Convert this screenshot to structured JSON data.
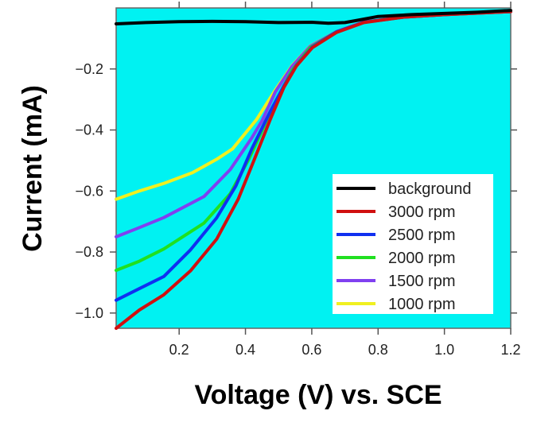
{
  "chart_data": {
    "type": "line",
    "title": "",
    "xlabel": "Voltage (V) vs. SCE",
    "ylabel": "Current (mA)",
    "xlim": [
      0.01,
      1.2
    ],
    "ylim": [
      -1.05,
      0.0
    ],
    "xticks": [
      0.2,
      0.4,
      0.6,
      0.8,
      1.0,
      1.2
    ],
    "xtick_labels": [
      "0.2",
      "0.4",
      "0.6",
      "0.8",
      "1.0",
      "1.2"
    ],
    "yticks": [
      -0.2,
      -0.4,
      -0.6,
      -0.8,
      -1.0
    ],
    "ytick_labels": [
      "−0.2",
      "−0.4",
      "−0.6",
      "−0.8",
      "−1.0"
    ],
    "grid": false,
    "plot_background": "#00F2F2",
    "legend_placement": "lower-right",
    "series": [
      {
        "name": "background",
        "color": "#000000",
        "x": [
          0.01,
          0.1,
          0.2,
          0.3,
          0.4,
          0.5,
          0.6,
          0.65,
          0.7,
          0.75,
          0.8,
          0.9,
          1.0,
          1.1,
          1.2
        ],
        "y": [
          -0.052,
          -0.048,
          -0.045,
          -0.044,
          -0.045,
          -0.048,
          -0.047,
          -0.05,
          -0.048,
          -0.038,
          -0.028,
          -0.022,
          -0.018,
          -0.014,
          -0.008
        ]
      },
      {
        "name": "3000 rpm",
        "color": "#D01010",
        "x": [
          0.01,
          0.08,
          0.154,
          0.234,
          0.313,
          0.378,
          0.427,
          0.475,
          0.516,
          0.554,
          0.602,
          0.675,
          0.757,
          0.877,
          1.0,
          1.2
        ],
        "y": [
          -1.05,
          -0.99,
          -0.94,
          -0.862,
          -0.758,
          -0.627,
          -0.496,
          -0.365,
          -0.26,
          -0.19,
          -0.13,
          -0.08,
          -0.048,
          -0.03,
          -0.022,
          -0.012
        ]
      },
      {
        "name": "2500 rpm",
        "color": "#1030F0",
        "x": [
          0.01,
          0.08,
          0.154,
          0.234,
          0.313,
          0.371,
          0.419,
          0.475,
          0.516,
          0.554,
          0.602,
          0.675,
          0.757,
          0.877,
          1.0,
          1.2
        ],
        "y": [
          -0.958,
          -0.92,
          -0.88,
          -0.793,
          -0.688,
          -0.583,
          -0.462,
          -0.339,
          -0.255,
          -0.188,
          -0.128,
          -0.078,
          -0.047,
          -0.03,
          -0.022,
          -0.012
        ]
      },
      {
        "name": "2000 rpm",
        "color": "#20E020",
        "x": [
          0.01,
          0.08,
          0.154,
          0.275,
          0.354,
          0.41,
          0.458,
          0.5,
          0.54,
          0.595,
          0.675,
          0.757,
          0.877,
          1.0,
          1.2
        ],
        "y": [
          -0.86,
          -0.83,
          -0.79,
          -0.705,
          -0.609,
          -0.496,
          -0.383,
          -0.29,
          -0.205,
          -0.13,
          -0.078,
          -0.047,
          -0.03,
          -0.022,
          -0.012
        ]
      },
      {
        "name": "1500 rpm",
        "color": "#8040F0",
        "x": [
          0.01,
          0.08,
          0.154,
          0.275,
          0.354,
          0.419,
          0.45,
          0.49,
          0.54,
          0.595,
          0.675,
          0.757,
          0.877,
          1.0,
          1.2
        ],
        "y": [
          -0.75,
          -0.72,
          -0.687,
          -0.618,
          -0.53,
          -0.426,
          -0.37,
          -0.275,
          -0.192,
          -0.126,
          -0.077,
          -0.046,
          -0.03,
          -0.022,
          -0.012
        ]
      },
      {
        "name": "1000 rpm",
        "color": "#F0F020",
        "x": [
          0.01,
          0.08,
          0.154,
          0.24,
          0.313,
          0.361,
          0.434,
          0.49,
          0.54,
          0.595,
          0.675,
          0.757,
          0.877,
          1.0,
          1.2
        ],
        "y": [
          -0.627,
          -0.6,
          -0.575,
          -0.54,
          -0.496,
          -0.462,
          -0.365,
          -0.269,
          -0.19,
          -0.125,
          -0.077,
          -0.046,
          -0.03,
          -0.022,
          -0.012
        ]
      }
    ]
  }
}
